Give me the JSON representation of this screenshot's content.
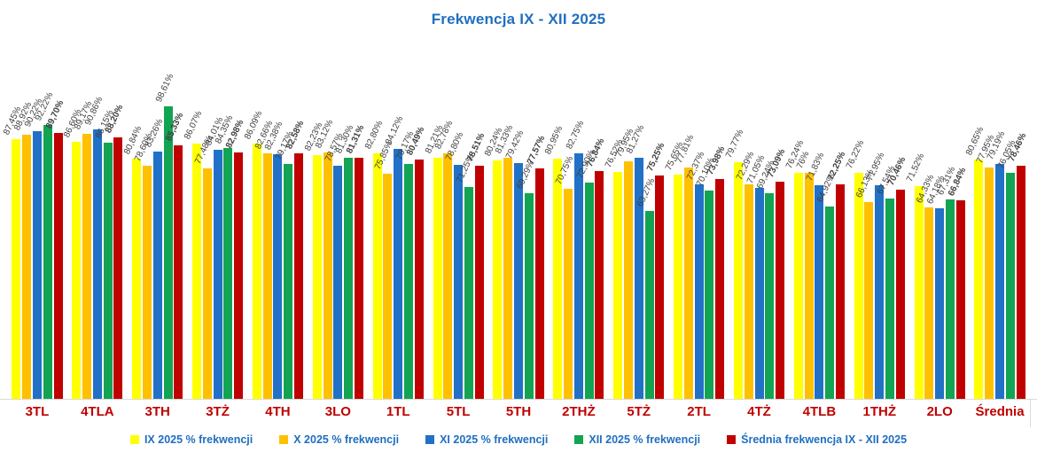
{
  "header": {
    "title": "Frekwencja IX - XII 2025"
  },
  "chart_data": {
    "type": "bar",
    "title": "Frekwencja IX - XII 2025",
    "categories": [
      "3TL",
      "4TLA",
      "3TH",
      "3TŻ",
      "4TH",
      "3LO",
      "1TL",
      "5TL",
      "5TH",
      "2THŻ",
      "5TŻ",
      "2TL",
      "4TŻ",
      "4TLB",
      "1THŻ",
      "2LO",
      "Średnia"
    ],
    "series": [
      {
        "name": "IX 2025 % frekwencji",
        "color": "#FFFF00",
        "values": [
          87.45,
          86.6,
          80.84,
          86.07,
          86.09,
          82.23,
          82.8,
          81.21,
          80.24,
          80.95,
          76.52,
          75.65,
          79.77,
          76.24,
          76.22,
          71.52,
          80.65
        ],
        "labels": [
          "87,45%",
          "86,60%",
          "80,84%",
          "86,07%",
          "86,09%",
          "82,23%",
          "82,80%",
          "81,21%",
          "80,24%",
          "80,95%",
          "76,52%",
          "75,65%",
          "79,77%",
          "76,24%",
          "76,22%",
          "71,52%",
          "80,65%"
        ],
        "bold_labels": false
      },
      {
        "name": "X 2025 % frekwencji",
        "color": "#FFC000",
        "values": [
          88.92,
          89.17,
          78.6,
          77.48,
          82.66,
          83.12,
          75.85,
          82.78,
          81.33,
          70.75,
          79.95,
          77.81,
          72.29,
          76.0,
          66.13,
          64.33,
          77.95
        ],
        "labels": [
          "88,92%",
          "89,17%",
          "78,60%",
          "77,48%",
          "82,66%",
          "83,12%",
          "75,85%",
          "82,78%",
          "81,33%",
          "70,75%",
          "79,95%",
          "77,81%",
          "72,29%",
          "76%",
          "66,13%",
          "64,33%",
          "77,95%"
        ],
        "bold_labels": false
      },
      {
        "name": "XI 2025 % frekwencji",
        "color": "#2171C7",
        "values": [
          90.22,
          90.86,
          83.26,
          84.01,
          82.38,
          78.57,
          84.12,
          78.8,
          79.42,
          82.75,
          81.27,
          72.37,
          71.05,
          71.83,
          71.95,
          64.18,
          79.19
        ],
        "labels": [
          "90,22%",
          "90,86%",
          "83,26%",
          "84,01%",
          "82,38%",
          "78,57%",
          "84,12%",
          "78,80%",
          "79,42%",
          "82,75%",
          "81,27%",
          "72,37%",
          "71,05%",
          "71,83%",
          "71,95%",
          "64,18%",
          "79,19%"
        ],
        "bold_labels": false
      },
      {
        "name": "XII 2025 % frekwencji",
        "color": "#12A452",
        "values": [
          92.22,
          86.15,
          98.61,
          84.35,
          79.17,
          81.3,
          79.17,
          71.25,
          69.29,
          72.9,
          63.27,
          70.1,
          69.24,
          64.92,
          67.54,
          67.31,
          76.05
        ],
        "labels": [
          "92,22%",
          "86,15%",
          "98,61%",
          "84,35%",
          "79,17%",
          "81,30%",
          "79,17%",
          "71,25%",
          "69,29%",
          "72,90%",
          "63,27%",
          "70,10%",
          "69,24%",
          "64,92%",
          "67,54%",
          "67,31%",
          "76,05%"
        ],
        "bold_labels": false
      },
      {
        "name": "Średnia frekwencja IX - XII 2025",
        "color": "#C00000",
        "values": [
          89.7,
          88.2,
          85.33,
          82.98,
          82.58,
          81.31,
          80.49,
          78.51,
          77.57,
          76.84,
          75.25,
          73.98,
          73.09,
          72.25,
          70.46,
          66.84,
          78.46
        ],
        "labels": [
          "89,70%",
          "88,20%",
          "85,33%",
          "82,98%",
          "82,58%",
          "81,31%",
          "80,49%",
          "78,51%",
          "77,57%",
          "76,84%",
          "75,25%",
          "73,98%",
          "73,09%",
          "72,25%",
          "70,46%",
          "66,84%",
          "78,46%"
        ],
        "bold_labels": true
      }
    ],
    "ylim": [
      0,
      100
    ],
    "grid": false,
    "legend_position": "bottom",
    "colors": {
      "title": "#1F6FC0",
      "legend_text": "#1F6FC0",
      "category_label": "#C00000",
      "value_label": "#3F3F3F",
      "axis_line": "#D9D9D9"
    }
  }
}
